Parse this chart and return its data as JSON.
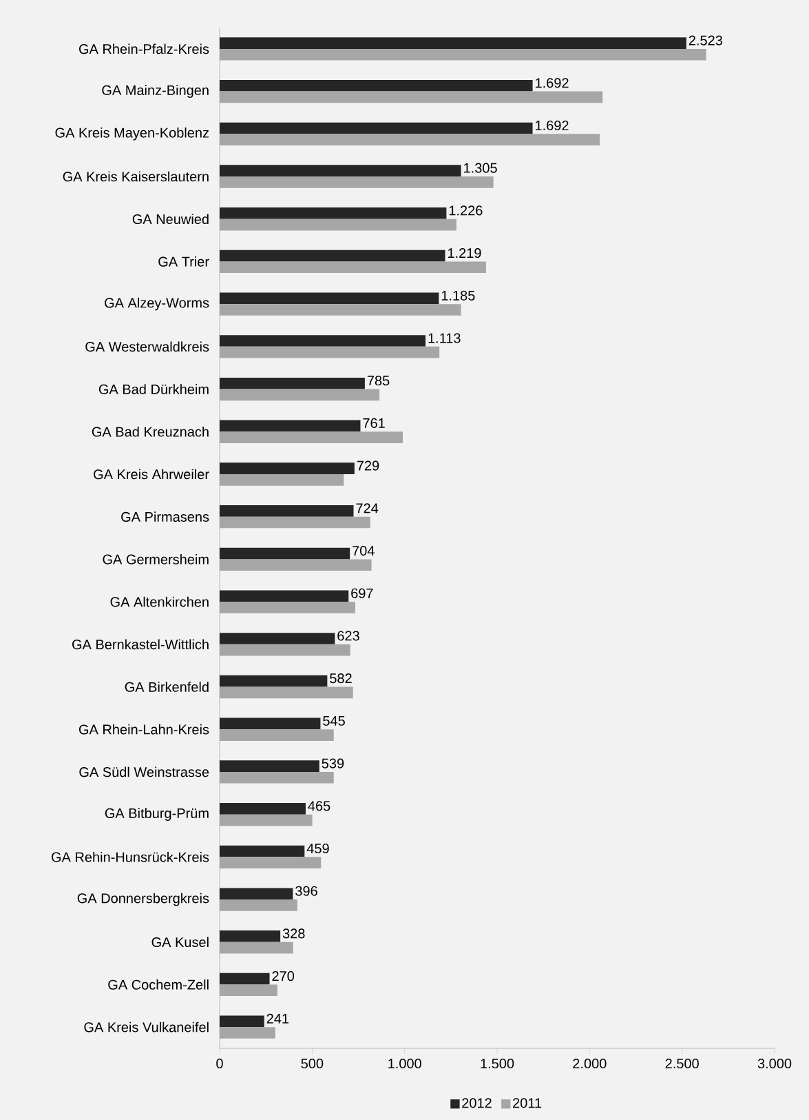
{
  "chart_data": {
    "type": "bar",
    "orientation": "horizontal",
    "categories": [
      "GA Rhein-Pfalz-Kreis",
      "GA Mainz-Bingen",
      "GA Kreis Mayen-Koblenz",
      "GA Kreis Kaiserslautern",
      "GA Neuwied",
      "GA Trier",
      "GA Alzey-Worms",
      "GA Westerwaldkreis",
      "GA Bad Dürkheim",
      "GA Bad Kreuznach",
      "GA Kreis Ahrweiler",
      "GA Pirmasens",
      "GA Germersheim",
      "GA Altenkirchen",
      "GA Bernkastel-Wittlich",
      "GA Birkenfeld",
      "GA Rhein-Lahn-Kreis",
      "GA Südl Weinstrasse",
      "GA Bitburg-Prüm",
      "GA Rehin-Hunsrück-Kreis",
      "GA Donnersbergkreis",
      "GA Kusel",
      "GA Cochem-Zell",
      "GA Kreis Vulkaneifel"
    ],
    "series": [
      {
        "name": "2012",
        "color": "#262626",
        "values": [
          2523,
          1692,
          1692,
          1305,
          1226,
          1219,
          1185,
          1113,
          785,
          761,
          729,
          724,
          704,
          697,
          623,
          582,
          545,
          539,
          465,
          459,
          396,
          328,
          270,
          241
        ],
        "value_labels": [
          "2.523",
          "1.692",
          "1.692",
          "1.305",
          "1.226",
          "1.219",
          "1.185",
          "1.113",
          "785",
          "761",
          "729",
          "724",
          "704",
          "697",
          "623",
          "582",
          "545",
          "539",
          "465",
          "459",
          "396",
          "328",
          "270",
          "241"
        ]
      },
      {
        "name": "2011",
        "color": "#a6a6a6",
        "values": [
          2630,
          2070,
          2055,
          1480,
          1280,
          1440,
          1305,
          1188,
          864,
          990,
          671,
          814,
          821,
          733,
          706,
          721,
          617,
          617,
          501,
          548,
          420,
          397,
          312,
          301
        ]
      }
    ],
    "xlim": [
      0,
      3000
    ],
    "xticks": [
      0,
      500,
      {
        "value": 1000,
        "label": "1.000"
      },
      {
        "value": 1500,
        "label": "1.500"
      },
      {
        "value": 2000,
        "label": "2.000"
      },
      {
        "value": 2500,
        "label": "2.500"
      },
      {
        "value": 3000,
        "label": "3.000"
      }
    ],
    "legend": "bottom",
    "grid": false
  }
}
